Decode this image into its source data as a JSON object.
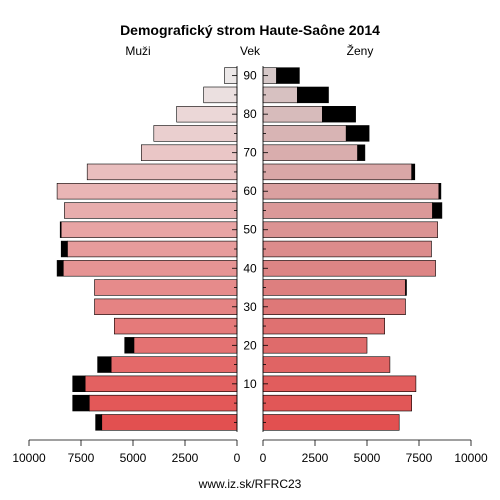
{
  "chart_data": {
    "type": "bar",
    "title": "Demografický strom Haute-Saône 2014",
    "left_label": "Muži",
    "center_label": "Vek",
    "right_label": "Ženy",
    "footer": "www.iz.sk/RFRC23",
    "x_ticks_left": [
      "10000",
      "7500",
      "5000",
      "2500",
      "0"
    ],
    "x_ticks_right": [
      "0",
      "2500",
      "5000",
      "7500",
      "10000"
    ],
    "xlim": [
      0,
      10000
    ],
    "age_ticks": [
      "10",
      "20",
      "30",
      "40",
      "50",
      "60",
      "70",
      "80",
      "90"
    ],
    "age_groups": [
      "0-4",
      "5-9",
      "10-14",
      "15-19",
      "20-24",
      "25-29",
      "30-34",
      "35-39",
      "40-44",
      "45-49",
      "50-54",
      "55-59",
      "60-64",
      "65-69",
      "70-74",
      "75-79",
      "80-84",
      "85-89",
      "90+"
    ],
    "male_total": [
      6800,
      7900,
      7900,
      6700,
      5400,
      5900,
      6850,
      6850,
      8650,
      8450,
      8500,
      8300,
      8650,
      7200,
      4600,
      4000,
      2900,
      1600,
      600
    ],
    "male_base": [
      6500,
      7100,
      7300,
      6050,
      4950,
      5900,
      6850,
      6850,
      8350,
      8150,
      8450,
      8300,
      8650,
      7200,
      4600,
      4000,
      2900,
      1600,
      600
    ],
    "female_total": [
      6550,
      7150,
      7350,
      6100,
      5000,
      5850,
      6850,
      6900,
      8300,
      8100,
      8400,
      8600,
      8550,
      7300,
      4900,
      5100,
      4450,
      3150,
      1750
    ],
    "female_base": [
      6550,
      7150,
      7350,
      6100,
      5000,
      5850,
      6850,
      6850,
      8300,
      8100,
      8400,
      8150,
      8450,
      7150,
      4550,
      4000,
      2850,
      1650,
      650
    ],
    "excess_color": "#000000"
  }
}
